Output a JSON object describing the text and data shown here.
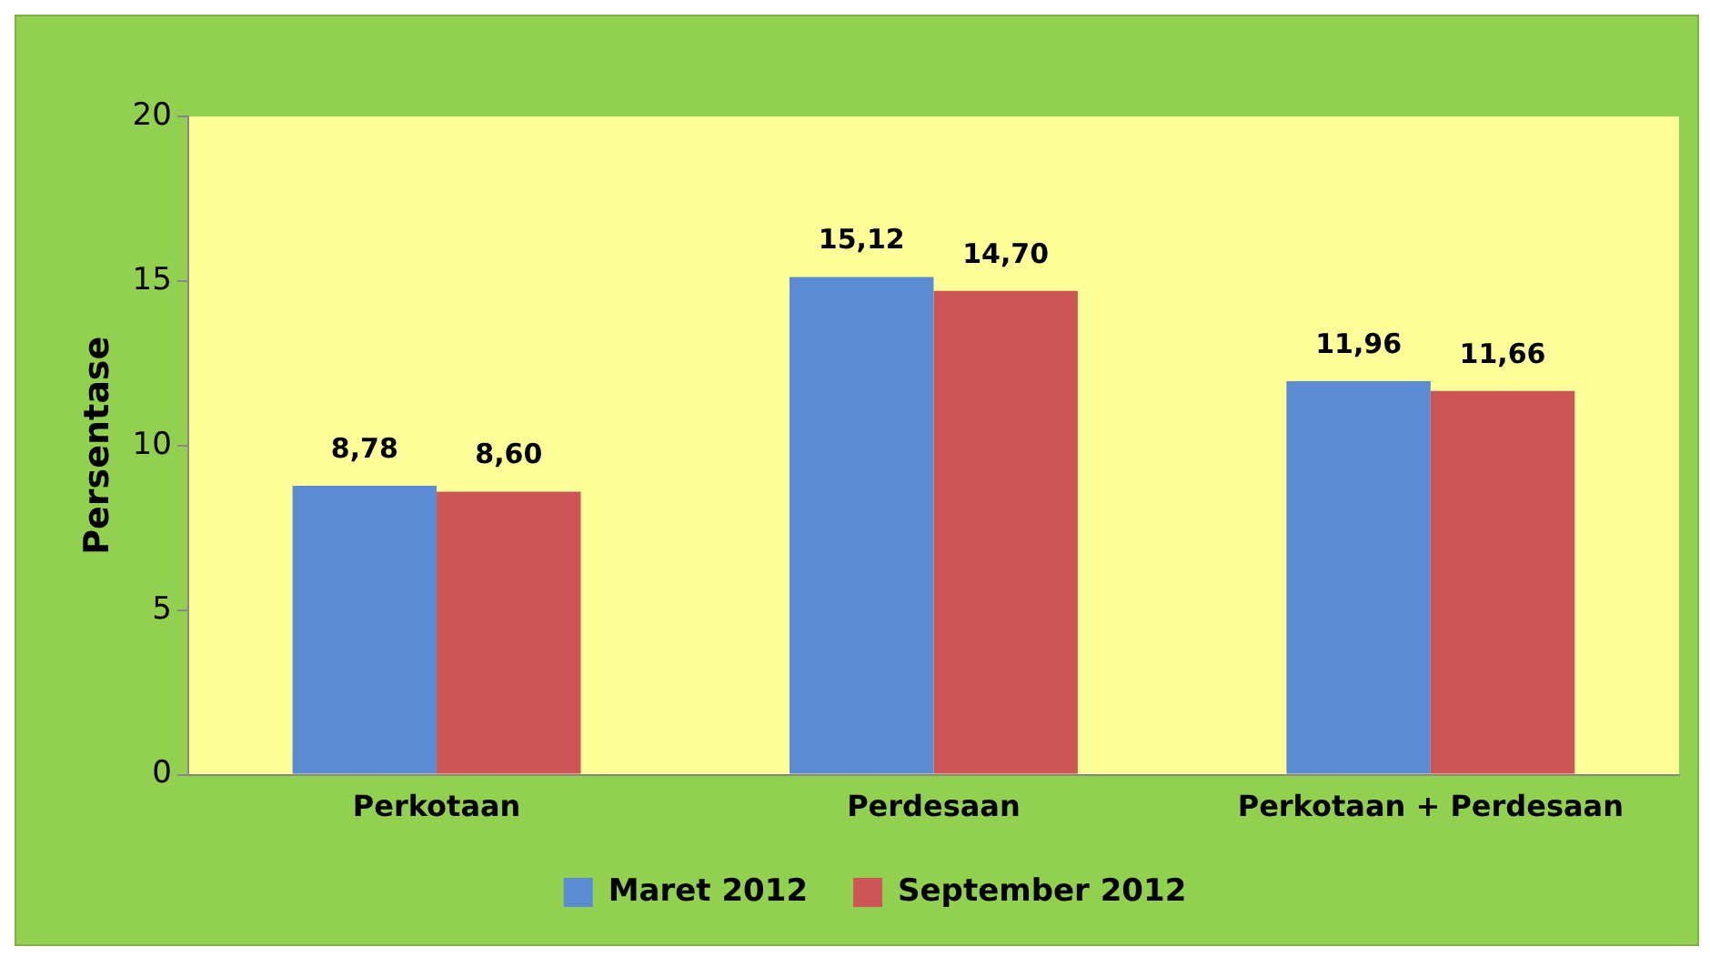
{
  "chart_data": {
    "type": "bar",
    "ylabel": "Persentase",
    "categories": [
      "Perkotaan",
      "Perdesaan",
      "Perkotaan + Perdesaan"
    ],
    "series": [
      {
        "name": "Maret 2012",
        "color": "#5b8bd0",
        "values": [
          8.78,
          15.12,
          11.96
        ],
        "value_labels": [
          "8,78",
          "15,12",
          "11,96"
        ]
      },
      {
        "name": "September 2012",
        "color": "#cd5555",
        "values": [
          8.6,
          14.7,
          11.66
        ],
        "value_labels": [
          "8,60",
          "14,70",
          "11,66"
        ]
      }
    ],
    "ylim": [
      0,
      20
    ],
    "yticks": [
      0,
      5,
      10,
      15,
      20
    ],
    "grid": false,
    "legend": "bottom"
  }
}
